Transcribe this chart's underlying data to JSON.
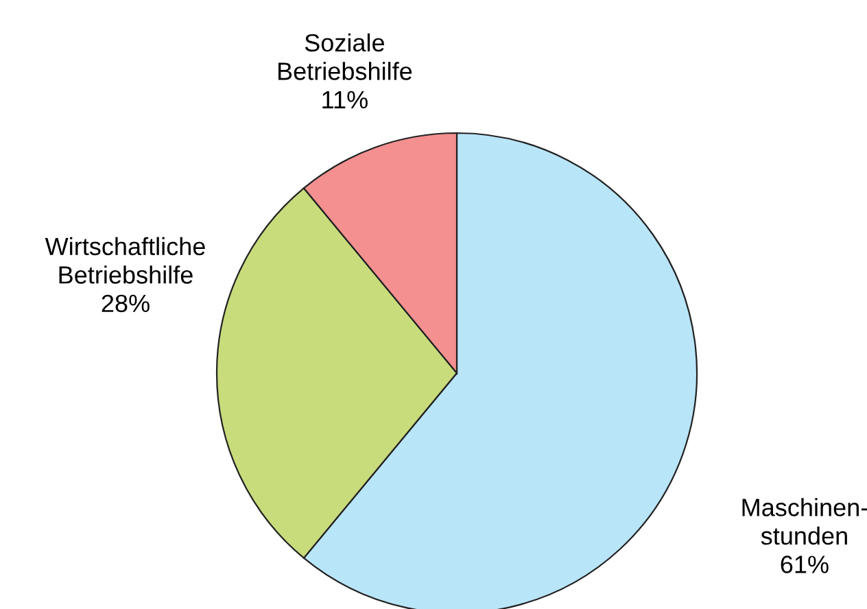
{
  "chart_data": {
    "type": "pie",
    "categories": [
      "Maschinen-\nstunden",
      "Wirtschaftliche\nBetriebshilfe",
      "Soziale\nBetriebshilfe"
    ],
    "values": [
      61,
      28,
      11
    ],
    "colors": [
      "#b9e5f8",
      "#c8dc7c",
      "#f49090"
    ],
    "value_labels": [
      "61%",
      "28%",
      "11%"
    ]
  }
}
